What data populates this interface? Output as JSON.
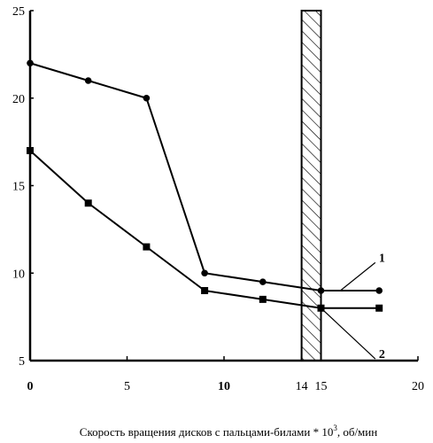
{
  "chart_data": {
    "type": "line",
    "title": "",
    "xlabel": "Скорость вращения дисков с пальцами-билами * 10",
    "xlabel_sup": "3",
    "xlabel_unit": ", об/мин",
    "ylabel": "",
    "xlim": [
      0,
      20
    ],
    "ylim": [
      5,
      25
    ],
    "x_ticks": [
      {
        "value": 0,
        "label": "0",
        "bold": true
      },
      {
        "value": 5,
        "label": "5",
        "bold": false
      },
      {
        "value": 10,
        "label": "10",
        "bold": true
      },
      {
        "value": 14,
        "label": "14",
        "bold": false
      },
      {
        "value": 15,
        "label": "15",
        "bold": false
      },
      {
        "value": 20,
        "label": "20",
        "bold": false
      }
    ],
    "y_ticks": [
      {
        "value": 5,
        "label": "5"
      },
      {
        "value": 10,
        "label": "10"
      },
      {
        "value": 15,
        "label": "15"
      },
      {
        "value": 20,
        "label": "20"
      },
      {
        "value": 25,
        "label": "25"
      }
    ],
    "grid": false,
    "hatched_band": {
      "x_from": 14,
      "x_to": 15
    },
    "series": [
      {
        "name": "1",
        "marker": "circle",
        "x": [
          0,
          3,
          6,
          9,
          12,
          15,
          18
        ],
        "y": [
          22,
          21,
          20,
          10,
          9.5,
          9,
          9
        ]
      },
      {
        "name": "2",
        "marker": "square",
        "x": [
          0,
          3,
          6,
          9,
          12,
          15,
          18
        ],
        "y": [
          17,
          14,
          11.5,
          9,
          8.5,
          8,
          8
        ]
      }
    ],
    "series_label_anchors": [
      {
        "series": 0,
        "x": 16,
        "y": 9,
        "label_x": 17.8,
        "label_y": 10.6
      },
      {
        "series": 1,
        "x": 15,
        "y": 8,
        "label_x": 17.8,
        "label_y": 5.1
      }
    ]
  }
}
